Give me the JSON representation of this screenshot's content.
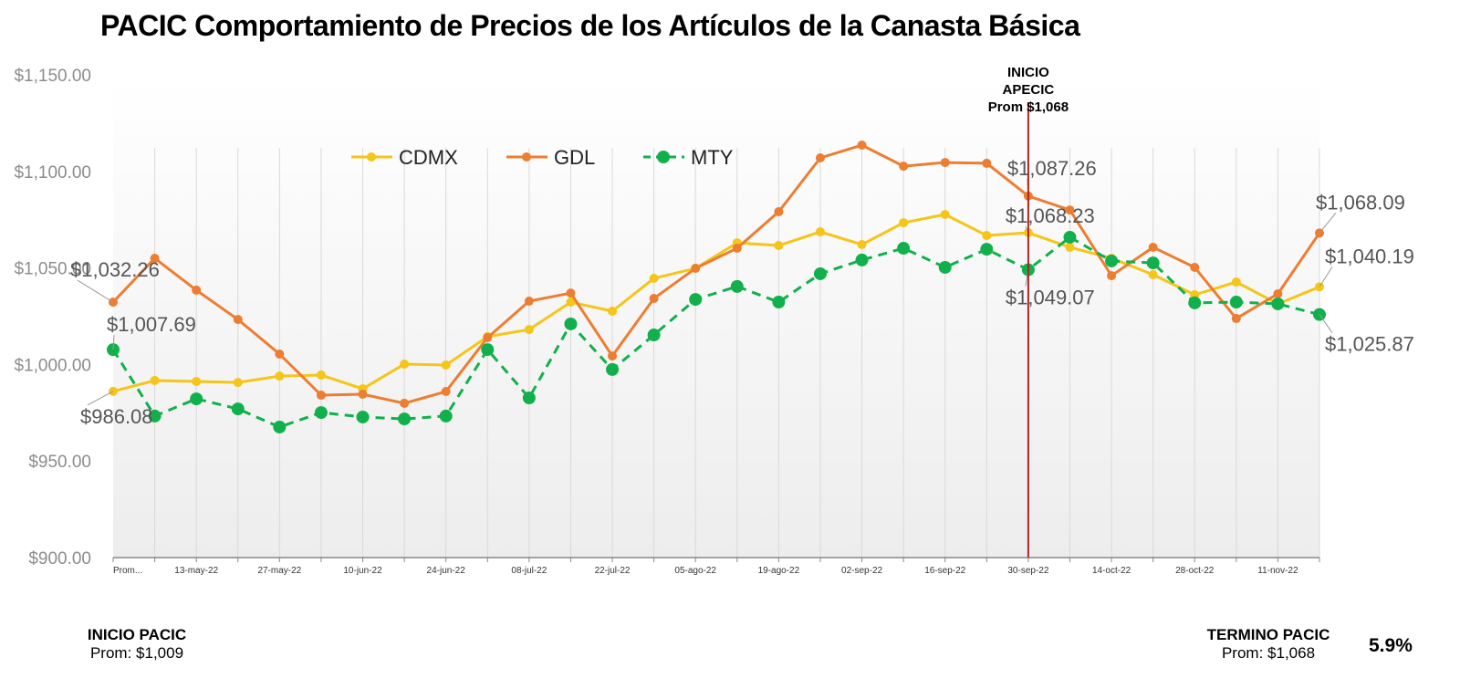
{
  "title": "PACIC Comportamiento de Precios de los Artículos de la Canasta Básica",
  "chart_data": {
    "type": "line",
    "title": "PACIC Comportamiento de Precios de los Artículos de la Canasta Básica",
    "xlabel": "",
    "ylabel": "",
    "ylim": [
      900,
      1150
    ],
    "yticks": [
      "$900.00",
      "$950.00",
      "$1,000.00",
      "$1,050.00",
      "$1,100.00",
      "$1,150.00"
    ],
    "grid": "vertical",
    "legend": "top",
    "categories": [
      "Prom...",
      "",
      "13-may-22",
      "",
      "27-may-22",
      "",
      "10-jun-22",
      "",
      "24-jun-22",
      "",
      "08-jul-22",
      "",
      "22-jul-22",
      "",
      "05-ago-22",
      "",
      "19-ago-22",
      "",
      "02-sep-22",
      "",
      "16-sep-22",
      "",
      "30-sep-22",
      "",
      "14-oct-22",
      "",
      "28-oct-22",
      "",
      "11-nov-22",
      ""
    ],
    "series": [
      {
        "name": "CDMX",
        "color": "#F5C518",
        "style": "solid",
        "values": [
          986.08,
          991.7,
          991.2,
          990.7,
          994.0,
          994.5,
          987.4,
          1000.2,
          999.7,
          1014.4,
          1018.1,
          1032.3,
          1027.6,
          1044.6,
          1049.8,
          1063.0,
          1061.6,
          1068.7,
          1062.1,
          1073.4,
          1077.7,
          1066.8,
          1068.23,
          1060.7,
          1055.0,
          1046.5,
          1036.1,
          1042.7,
          1031.4,
          1040.19
        ]
      },
      {
        "name": "GDL",
        "color": "#ED7D31",
        "style": "solid",
        "values": [
          1032.26,
          1055.0,
          1038.5,
          1023.3,
          1005.4,
          984.1,
          984.6,
          979.9,
          986.0,
          1013.9,
          1032.8,
          1037.0,
          1004.4,
          1034.2,
          1049.8,
          1060.2,
          1079.1,
          1107.0,
          1113.6,
          1102.7,
          1104.6,
          1104.2,
          1087.26,
          1080.0,
          1046.0,
          1060.7,
          1050.3,
          1023.8,
          1036.6,
          1068.09
        ]
      },
      {
        "name": "MTY",
        "color": "#12B04C",
        "style": "dashed",
        "values": [
          1007.69,
          973.3,
          982.2,
          977.0,
          967.6,
          975.1,
          972.8,
          971.8,
          973.3,
          1007.7,
          982.7,
          1021.0,
          997.4,
          1015.3,
          1033.7,
          1040.4,
          1032.3,
          1047.0,
          1054.1,
          1060.2,
          1050.3,
          1059.7,
          1049.07,
          1065.9,
          1053.6,
          1052.6,
          1031.9,
          1032.3,
          1031.4,
          1025.87
        ]
      }
    ],
    "data_labels": [
      {
        "series": "CDMX",
        "index": 0,
        "text": "$986.08"
      },
      {
        "series": "GDL",
        "index": 0,
        "text": "$1,032.26"
      },
      {
        "series": "MTY",
        "index": 0,
        "text": "$1,007.69"
      },
      {
        "series": "GDL",
        "index": 22,
        "text": "$1,087.26"
      },
      {
        "series": "CDMX",
        "index": 22,
        "text": "$1,068.23"
      },
      {
        "series": "MTY",
        "index": 22,
        "text": "$1,049.07"
      },
      {
        "series": "GDL",
        "index": 29,
        "text": "$1,068.09"
      },
      {
        "series": "CDMX",
        "index": 29,
        "text": "$1,040.19"
      },
      {
        "series": "MTY",
        "index": 29,
        "text": "$1,025.87"
      }
    ],
    "marker_line": {
      "index": 22,
      "color": "#B22222",
      "label": [
        "INICIO",
        "APECIC",
        "Prom $1,068"
      ]
    }
  },
  "footer": {
    "start_title": "INICIO PACIC",
    "start_avg": "Prom: $1,009",
    "end_title": "TERMINO PACIC",
    "end_avg": "Prom: $1,068",
    "change": "5.9%"
  }
}
